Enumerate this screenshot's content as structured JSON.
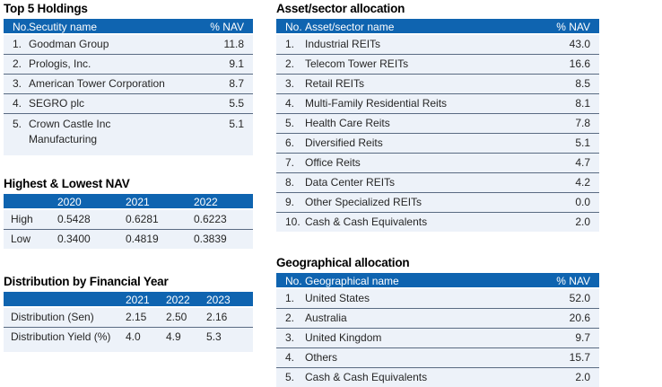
{
  "colors": {
    "header_bg": "#0F64B0",
    "row_bg": "#EDF2F9",
    "divider": "#5A6B82",
    "body_text": "#262626",
    "header_text": "#FFFFFF",
    "title_text": "#000000"
  },
  "top_holdings": {
    "title": "Top 5 Holdings",
    "columns": {
      "no": "No.",
      "name": "Secutity name",
      "nav": "% NAV"
    },
    "rows": [
      {
        "no": "1.",
        "name": "Goodman Group",
        "nav": "11.8"
      },
      {
        "no": "2.",
        "name": "Prologis, Inc.",
        "nav": "9.1"
      },
      {
        "no": "3.",
        "name": "American Tower Corporation",
        "nav": "8.7"
      },
      {
        "no": "4.",
        "name": "SEGRO plc",
        "nav": "5.5"
      },
      {
        "no": "5.",
        "name": "Crown Castle Inc\nManufacturing",
        "nav": "5.1"
      }
    ]
  },
  "nav_table": {
    "title": "Highest & Lowest NAV",
    "columns": [
      "2020",
      "2021",
      "2022"
    ],
    "rows": [
      {
        "label": "High",
        "values": [
          "0.5428",
          "0.6281",
          "0.6223"
        ]
      },
      {
        "label": "Low",
        "values": [
          "0.3400",
          "0.4819",
          "0.3839"
        ]
      }
    ]
  },
  "distribution": {
    "title": "Distribution by Financial Year",
    "columns": [
      "2021",
      "2022",
      "2023"
    ],
    "rows": [
      {
        "label": "Distribution (Sen)",
        "values": [
          "2.15",
          "2.50",
          "2.16"
        ]
      },
      {
        "label": "Distribution Yield (%)",
        "values": [
          "4.0",
          "4.9",
          "5.3"
        ]
      }
    ]
  },
  "asset_allocation": {
    "title": "Asset/sector allocation",
    "columns": {
      "no": "No.",
      "name": "Asset/sector name",
      "nav": "% NAV"
    },
    "rows": [
      {
        "no": "1.",
        "name": "Industrial REITs",
        "nav": "43.0"
      },
      {
        "no": "2.",
        "name": "Telecom Tower REITs",
        "nav": "16.6"
      },
      {
        "no": "3.",
        "name": "Retail REITs",
        "nav": "8.5"
      },
      {
        "no": "4.",
        "name": "Multi-Family Residential Reits",
        "nav": "8.1"
      },
      {
        "no": "5.",
        "name": "Health Care Reits",
        "nav": "7.8"
      },
      {
        "no": "6.",
        "name": "Diversified Reits",
        "nav": "5.1"
      },
      {
        "no": "7.",
        "name": "Office Reits",
        "nav": "4.7"
      },
      {
        "no": "8.",
        "name": "Data Center REITs",
        "nav": "4.2"
      },
      {
        "no": "9.",
        "name": "Other Specialized REITs",
        "nav": "0.0"
      },
      {
        "no": "10.",
        "name": "Cash & Cash Equivalents",
        "nav": "2.0"
      }
    ]
  },
  "geo_allocation": {
    "title": "Geographical allocation",
    "columns": {
      "no": "No.",
      "name": "Geographical name",
      "nav": "% NAV"
    },
    "rows": [
      {
        "no": "1.",
        "name": "United States",
        "nav": "52.0"
      },
      {
        "no": "2.",
        "name": "Australia",
        "nav": "20.6"
      },
      {
        "no": "3.",
        "name": "United Kingdom",
        "nav": "9.7"
      },
      {
        "no": "4.",
        "name": "Others",
        "nav": "15.7"
      },
      {
        "no": "5.",
        "name": "Cash & Cash Equivalents",
        "nav": "2.0"
      }
    ]
  }
}
